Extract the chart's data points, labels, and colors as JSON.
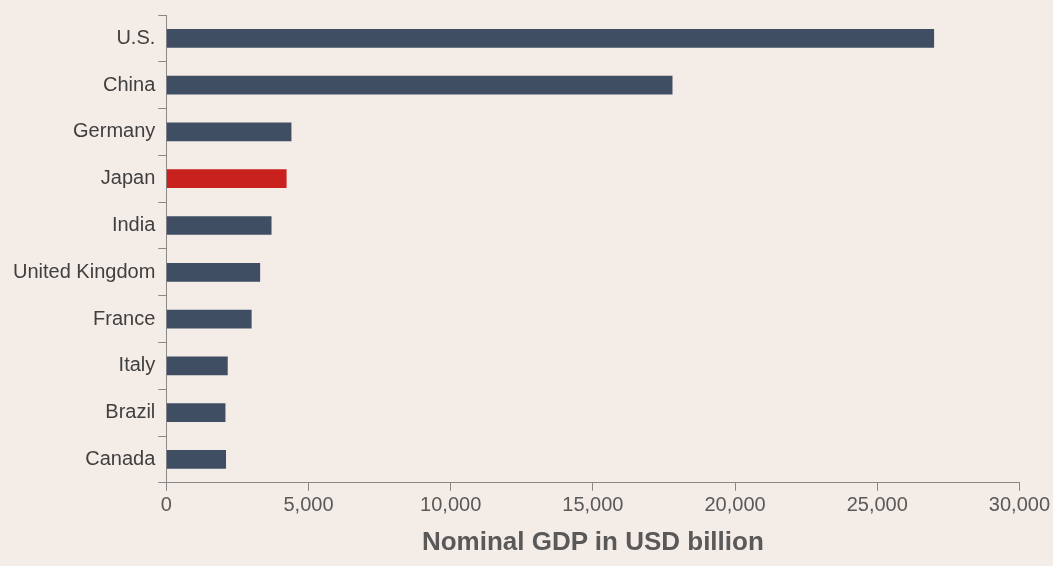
{
  "chart_data": {
    "type": "bar",
    "orientation": "horizontal",
    "xlabel": "Nominal GDP in USD billion",
    "categories": [
      "U.S.",
      "China",
      "Germany",
      "Japan",
      "India",
      "United Kingdom",
      "France",
      "Italy",
      "Brazil",
      "Canada"
    ],
    "values": [
      27000,
      17800,
      4400,
      4230,
      3700,
      3300,
      3000,
      2160,
      2080,
      2100
    ],
    "colors": [
      "#3f4e63",
      "#3f4e63",
      "#3f4e63",
      "#c9211e",
      "#3f4e63",
      "#3f4e63",
      "#3f4e63",
      "#3f4e63",
      "#3f4e63",
      "#3f4e63"
    ],
    "xlim": [
      0,
      30000
    ],
    "xticks": [
      0,
      {
        "value": 5000,
        "label": "5,000"
      },
      {
        "value": 10000,
        "label": "10,000"
      },
      {
        "value": 15000,
        "label": "15,000"
      },
      {
        "value": 20000,
        "label": "20,000"
      },
      {
        "value": 25000,
        "label": "25,000"
      },
      {
        "value": 30000,
        "label": "30,000"
      }
    ],
    "grid": false,
    "legend": false
  }
}
